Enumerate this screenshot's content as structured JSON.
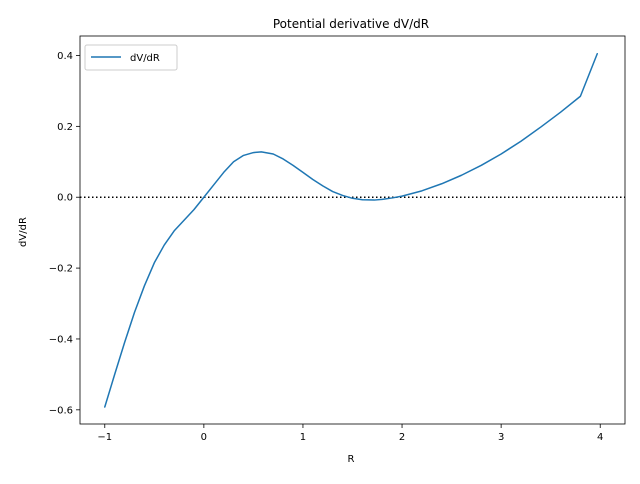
{
  "chart_data": {
    "type": "line",
    "title": "Potential derivative dV/dR",
    "xlabel": "R",
    "ylabel": "dV/dR",
    "xlim": [
      -1.25,
      4.25
    ],
    "ylim": [
      -0.64,
      0.455
    ],
    "xticks": [
      -1,
      0,
      1,
      2,
      3,
      4
    ],
    "xtick_labels": [
      "−1",
      "0",
      "1",
      "2",
      "3",
      "4"
    ],
    "yticks": [
      -0.6,
      -0.4,
      -0.2,
      0.0,
      0.2,
      0.4
    ],
    "ytick_labels": [
      "−0.6",
      "−0.4",
      "−0.2",
      "0.0",
      "0.2",
      "0.4"
    ],
    "grid": false,
    "legend_position": "upper-left",
    "reference_line": {
      "y": 0,
      "style": "dotted",
      "color": "#000000"
    },
    "series": [
      {
        "name": "dV/dR",
        "color": "#1f77b4",
        "x": [
          -1.0,
          -0.9,
          -0.8,
          -0.7,
          -0.6,
          -0.5,
          -0.4,
          -0.3,
          -0.2,
          -0.1,
          0.0,
          0.1,
          0.2,
          0.3,
          0.4,
          0.5,
          0.58,
          0.7,
          0.8,
          0.9,
          1.0,
          1.1,
          1.2,
          1.3,
          1.4,
          1.5,
          1.6,
          1.72,
          1.8,
          1.9,
          2.0,
          2.2,
          2.4,
          2.6,
          2.8,
          3.0,
          3.2,
          3.4,
          3.6,
          3.8,
          3.97
        ],
        "values": [
          -0.592,
          -0.5,
          -0.41,
          -0.325,
          -0.25,
          -0.185,
          -0.135,
          -0.095,
          -0.065,
          -0.035,
          0.0,
          0.035,
          0.07,
          0.1,
          0.118,
          0.126,
          0.128,
          0.122,
          0.108,
          0.09,
          0.07,
          0.05,
          0.032,
          0.016,
          0.005,
          -0.003,
          -0.007,
          -0.008,
          -0.006,
          -0.002,
          0.003,
          0.018,
          0.038,
          0.062,
          0.09,
          0.122,
          0.158,
          0.198,
          0.24,
          0.285,
          0.405
        ]
      }
    ]
  }
}
